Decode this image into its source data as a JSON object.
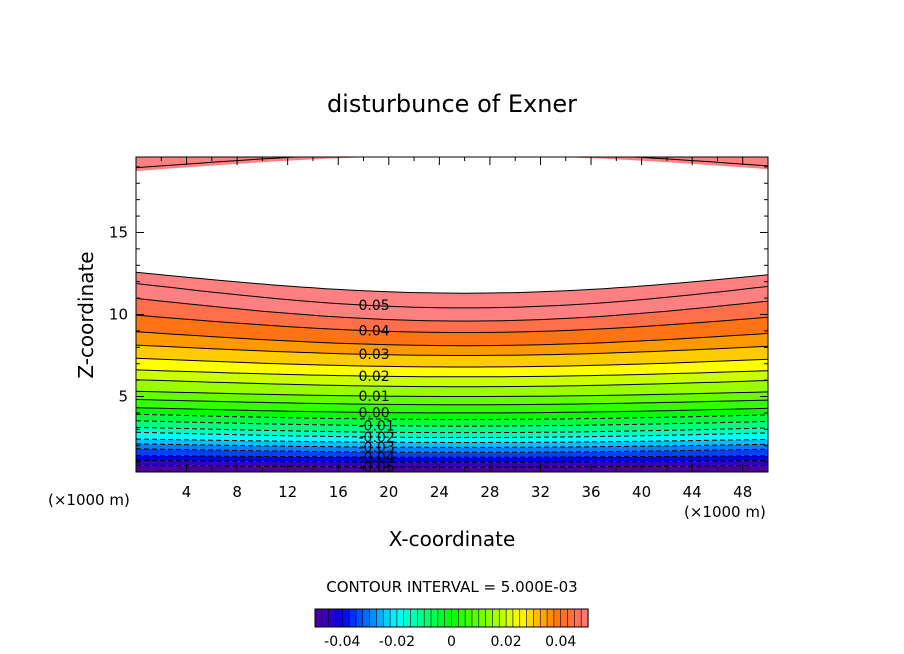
{
  "chart_data": {
    "type": "contour",
    "title": "disturbunce of Exner",
    "xlabel": "X-coordinate",
    "ylabel": "Z-coordinate",
    "x_unit": "(×1000 m)",
    "x_unit_right": "(×1000 m)",
    "xlim": [
      0,
      50
    ],
    "ylim": [
      0.4,
      19.6
    ],
    "x_ticks": [
      4,
      8,
      12,
      16,
      20,
      24,
      28,
      32,
      36,
      40,
      44,
      48
    ],
    "y_ticks": [
      5,
      10,
      15
    ],
    "grid": false,
    "contour_interval_label": "CONTOUR INTERVAL = 5.000E-03",
    "contour_labels": [
      "0.05",
      "0.04",
      "0.03",
      "0.02",
      "0.01",
      "0.00",
      "-0.01",
      "-0.02",
      "-0.03",
      "-0.04",
      "-0.05"
    ],
    "colorbar": {
      "range": [
        -0.05,
        0.05
      ],
      "tick_labels": [
        "-0.04",
        "-0.02",
        "0",
        "0.02",
        "0.04"
      ],
      "tick_values": [
        -0.04,
        -0.02,
        0,
        0.02,
        0.04
      ]
    },
    "level_profiles": [
      {
        "value": 0.06,
        "z_edge": 19.0,
        "z_mid": 19.9
      },
      {
        "value": 0.055,
        "z_edge": 12.5,
        "z_mid": 11.3
      },
      {
        "value": 0.05,
        "z_edge": 11.8,
        "z_mid": 10.4
      },
      {
        "value": 0.045,
        "z_edge": 10.9,
        "z_mid": 9.6
      },
      {
        "value": 0.04,
        "z_edge": 9.9,
        "z_mid": 8.9
      },
      {
        "value": 0.035,
        "z_edge": 8.9,
        "z_mid": 8.1
      },
      {
        "value": 0.03,
        "z_edge": 8.1,
        "z_mid": 7.5
      },
      {
        "value": 0.025,
        "z_edge": 7.3,
        "z_mid": 6.8
      },
      {
        "value": 0.02,
        "z_edge": 6.6,
        "z_mid": 6.2
      },
      {
        "value": 0.015,
        "z_edge": 6.0,
        "z_mid": 5.6
      },
      {
        "value": 0.01,
        "z_edge": 5.3,
        "z_mid": 5.0
      },
      {
        "value": 0.005,
        "z_edge": 4.8,
        "z_mid": 4.5
      },
      {
        "value": 0.0,
        "z_edge": 4.3,
        "z_mid": 4.0
      },
      {
        "value": -0.005,
        "z_edge": 3.9,
        "z_mid": 3.6
      },
      {
        "value": -0.01,
        "z_edge": 3.5,
        "z_mid": 3.2
      },
      {
        "value": -0.015,
        "z_edge": 3.1,
        "z_mid": 2.8
      },
      {
        "value": -0.02,
        "z_edge": 2.8,
        "z_mid": 2.5
      },
      {
        "value": -0.025,
        "z_edge": 2.4,
        "z_mid": 2.2
      },
      {
        "value": -0.03,
        "z_edge": 2.1,
        "z_mid": 1.9
      },
      {
        "value": -0.035,
        "z_edge": 1.8,
        "z_mid": 1.6
      },
      {
        "value": -0.04,
        "z_edge": 1.4,
        "z_mid": 1.3
      },
      {
        "value": -0.045,
        "z_edge": 1.1,
        "z_mid": 1.0
      },
      {
        "value": -0.05,
        "z_edge": 0.8,
        "z_mid": 0.7
      }
    ]
  }
}
